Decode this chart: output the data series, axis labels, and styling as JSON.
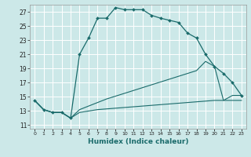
{
  "xlabel": "Humidex (Indice chaleur)",
  "bg_color": "#cce8e8",
  "grid_color": "#b8dada",
  "line_color": "#1a6b6b",
  "xlim": [
    -0.5,
    23.5
  ],
  "ylim": [
    10.5,
    28.0
  ],
  "yticks": [
    11,
    13,
    15,
    17,
    19,
    21,
    23,
    25,
    27
  ],
  "xticks": [
    0,
    1,
    2,
    3,
    4,
    5,
    6,
    7,
    8,
    9,
    10,
    11,
    12,
    13,
    14,
    15,
    16,
    17,
    18,
    19,
    20,
    21,
    22,
    23
  ],
  "curve1_x": [
    0,
    1,
    2,
    3,
    4,
    5,
    6,
    7,
    8,
    9,
    10,
    11,
    12,
    13,
    14,
    15,
    16,
    17,
    18,
    19,
    20,
    21,
    22,
    23
  ],
  "curve1_y": [
    14.5,
    13.2,
    12.8,
    12.8,
    12.0,
    21.0,
    23.3,
    26.1,
    26.1,
    27.6,
    27.3,
    27.3,
    27.3,
    26.5,
    26.1,
    25.8,
    25.5,
    24.0,
    23.3,
    21.0,
    19.3,
    18.3,
    17.0,
    15.2
  ],
  "curve2_x": [
    0,
    1,
    2,
    3,
    4,
    5,
    6,
    7,
    8,
    9,
    10,
    11,
    12,
    13,
    14,
    15,
    16,
    17,
    18,
    19,
    20,
    21,
    22,
    23
  ],
  "curve2_y": [
    14.5,
    13.2,
    12.8,
    12.8,
    12.0,
    13.2,
    13.7,
    14.2,
    14.7,
    15.1,
    15.5,
    15.9,
    16.3,
    16.7,
    17.1,
    17.5,
    17.9,
    18.3,
    18.7,
    20.0,
    19.3,
    14.5,
    15.2,
    15.2
  ],
  "curve3_x": [
    0,
    1,
    2,
    3,
    4,
    5,
    6,
    7,
    8,
    9,
    10,
    11,
    12,
    13,
    14,
    15,
    16,
    17,
    18,
    19,
    20,
    21,
    22,
    23
  ],
  "curve3_y": [
    14.5,
    13.2,
    12.8,
    12.8,
    12.0,
    12.8,
    13.0,
    13.2,
    13.3,
    13.4,
    13.5,
    13.6,
    13.7,
    13.8,
    13.9,
    14.0,
    14.1,
    14.2,
    14.3,
    14.4,
    14.5,
    14.5,
    14.5,
    14.5
  ]
}
